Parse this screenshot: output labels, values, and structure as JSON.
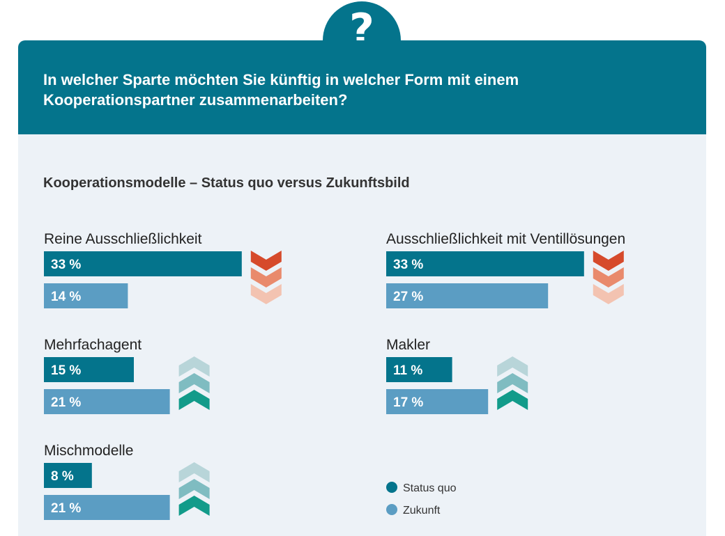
{
  "header": {
    "badge_symbol": "?",
    "question": "In welcher Sparte möchten Sie künftig in welcher Form mit einem Kooperationspartner zusammenarbeiten?"
  },
  "colors": {
    "header_bg": "#04748c",
    "panel_bg": "#edf2f7",
    "status_quo": "#04748c",
    "zukunft": "#5b9dc3",
    "down_arrow": [
      "#d64a2b",
      "#e98a6c",
      "#f3c3b1"
    ],
    "up_arrow": [
      "#b8d5d9",
      "#7fbcc1",
      "#129b8a"
    ]
  },
  "chart_data": {
    "type": "bar",
    "title": "Kooperationsmodelle – Status quo versus Zukunftsbild",
    "legend_position": "bottom-right",
    "series": [
      {
        "name": "Status quo",
        "color": "#04748c"
      },
      {
        "name": "Zukunft",
        "color": "#5b9dc3"
      }
    ],
    "unit": "%",
    "categories": [
      {
        "name": "Reine Ausschließlichkeit",
        "status_quo": 33,
        "zukunft": 14,
        "status_quo_label": "33 %",
        "zukunft_label": "14 %",
        "trend": "down",
        "trend_icon": "chevron-down-icon"
      },
      {
        "name": "Ausschließlichkeit mit Ventillösungen",
        "status_quo": 33,
        "zukunft": 27,
        "status_quo_label": "33 %",
        "zukunft_label": "27 %",
        "trend": "down",
        "trend_icon": "chevron-down-icon"
      },
      {
        "name": "Mehrfachagent",
        "status_quo": 15,
        "zukunft": 21,
        "status_quo_label": "15 %",
        "zukunft_label": "21 %",
        "trend": "up",
        "trend_icon": "chevron-up-icon"
      },
      {
        "name": "Makler",
        "status_quo": 11,
        "zukunft": 17,
        "status_quo_label": "11 %",
        "zukunft_label": "17 %",
        "trend": "up",
        "trend_icon": "chevron-up-icon"
      },
      {
        "name": "Mischmodelle",
        "status_quo": 8,
        "zukunft": 21,
        "status_quo_label": "8 %",
        "zukunft_label": "21 %",
        "trend": "up",
        "trend_icon": "chevron-up-icon"
      }
    ]
  }
}
